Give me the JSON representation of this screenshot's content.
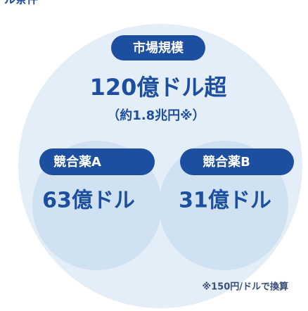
{
  "header": {
    "cut_title": "ル条件"
  },
  "market": {
    "badge": "市場規模",
    "value": "120億ドル超",
    "sub": "（約1.8兆円※）"
  },
  "competitors": [
    {
      "badge": "競合薬A",
      "value": "63億ドル"
    },
    {
      "badge": "競合薬B",
      "value": "31億ドル"
    }
  ],
  "note": "※150円/ドルで換算"
}
